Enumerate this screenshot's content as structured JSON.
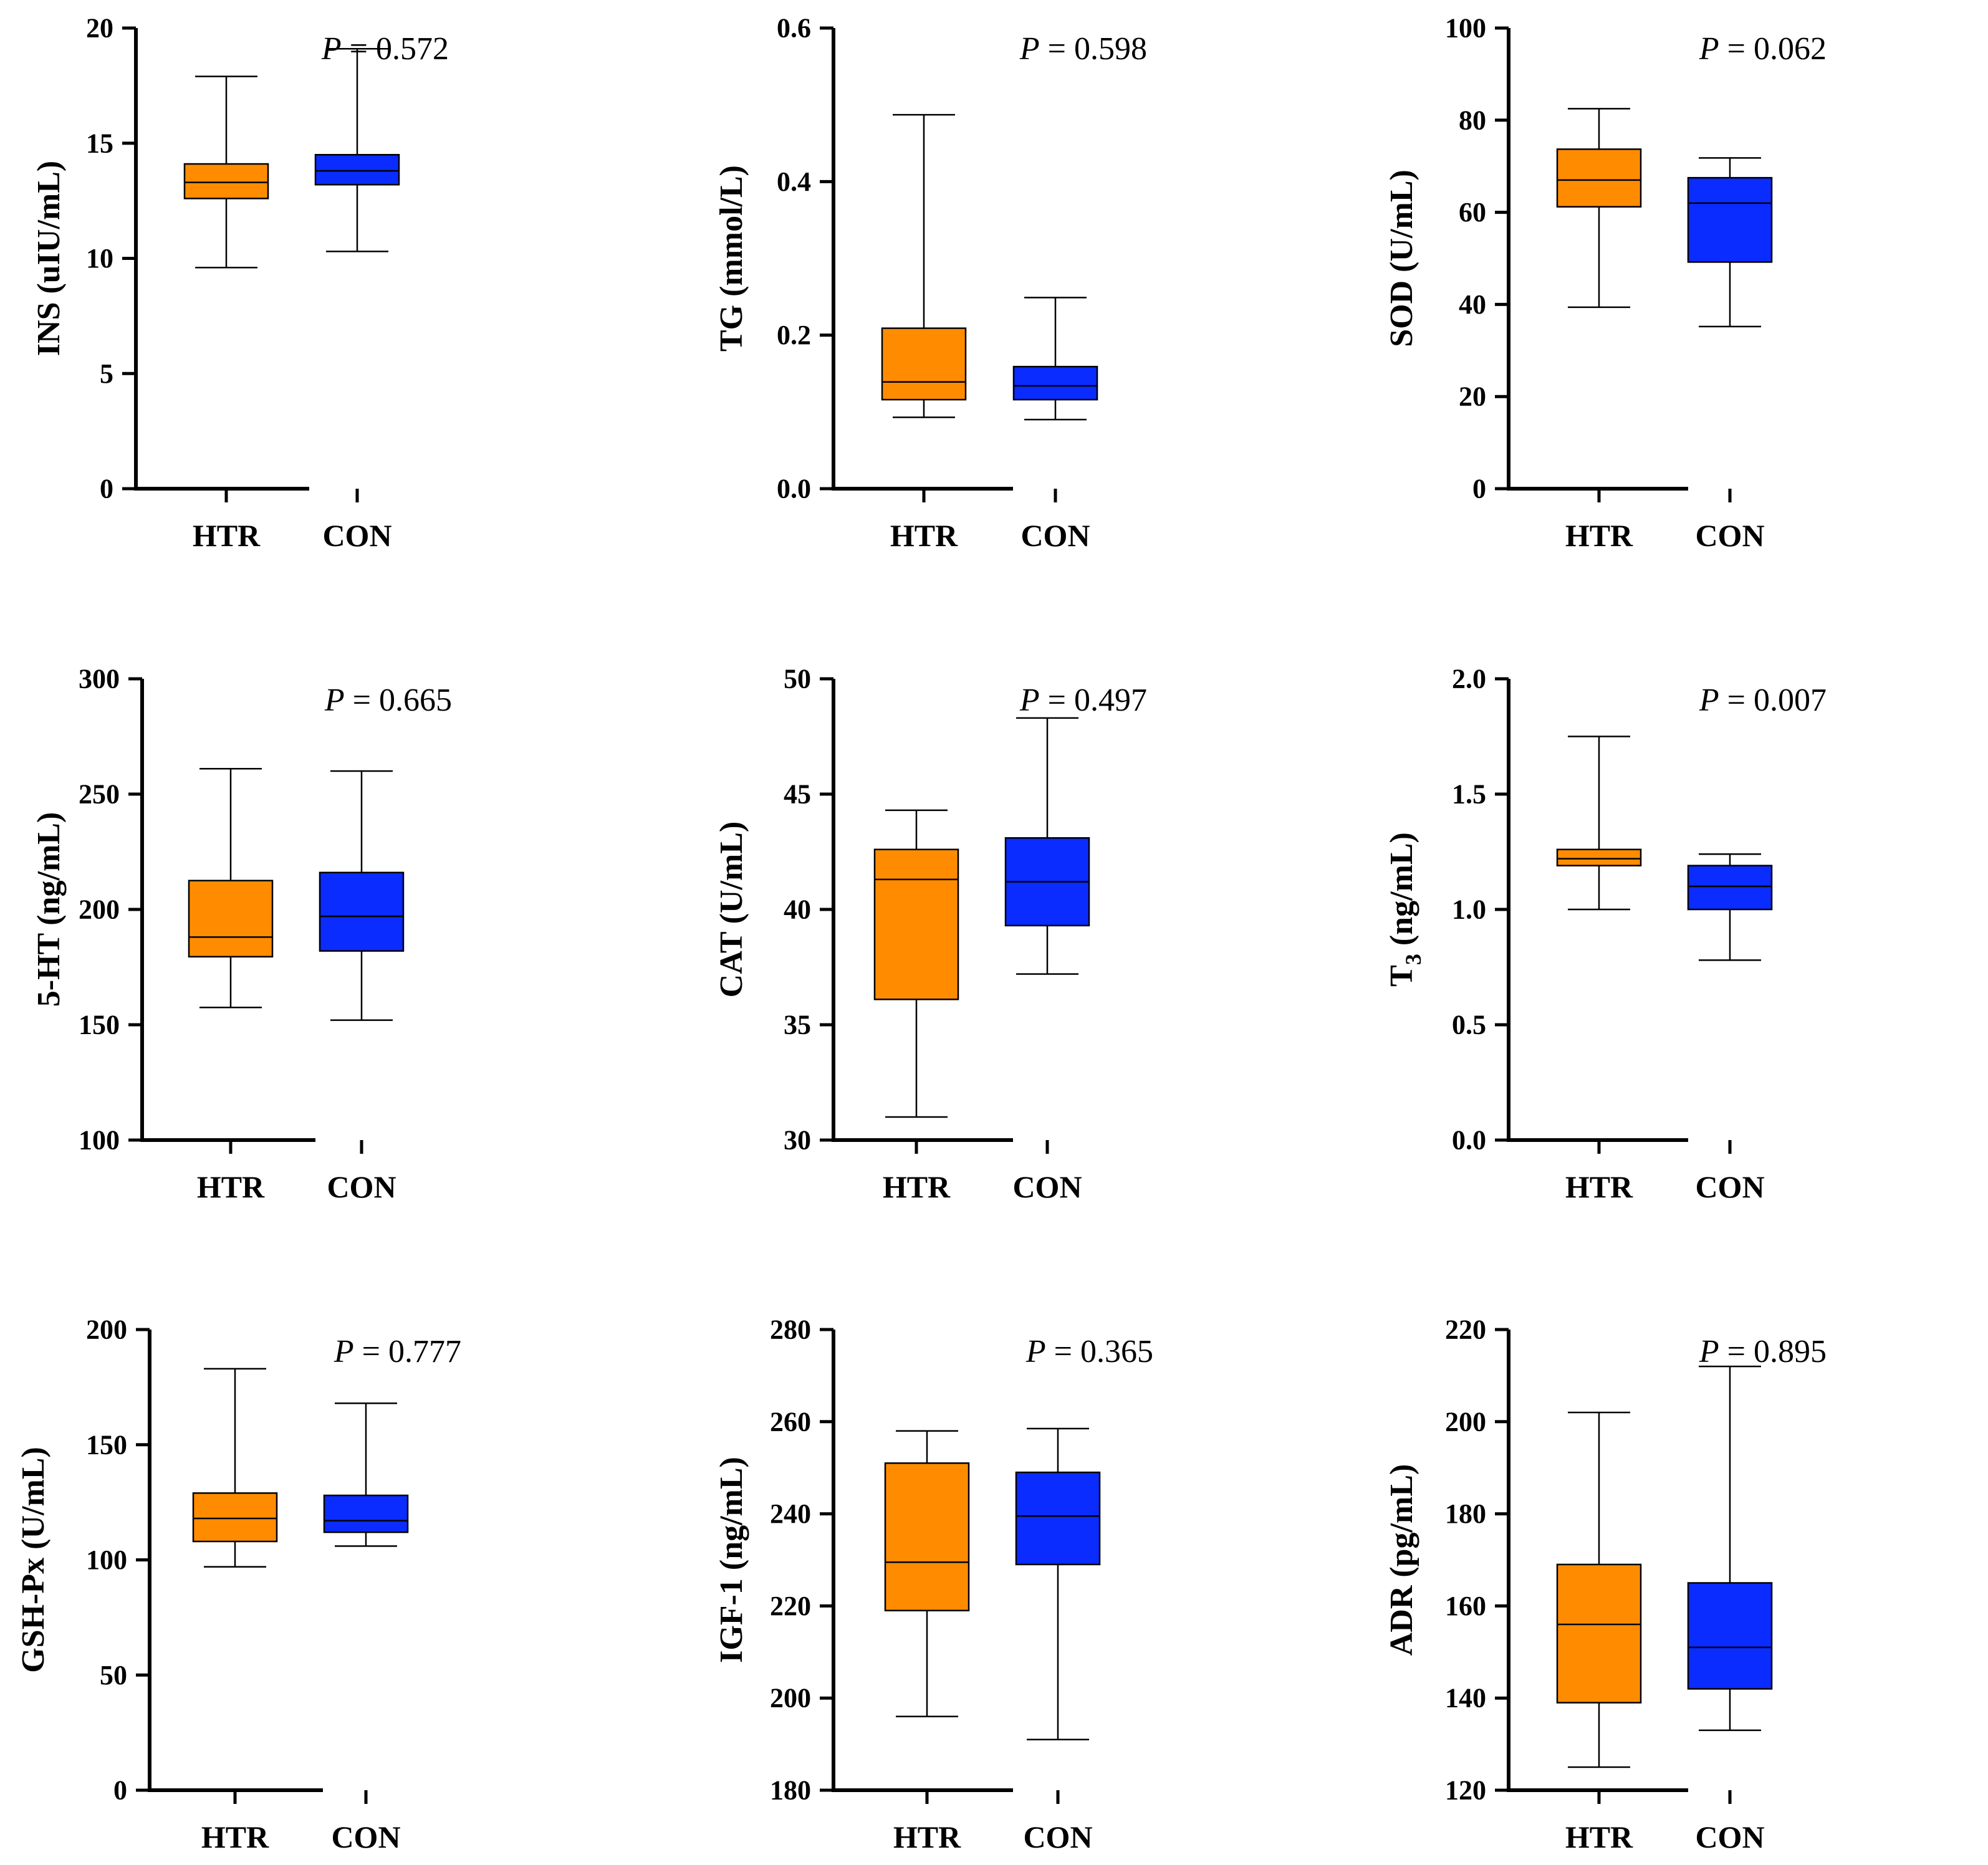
{
  "colors": {
    "HTR": "#ff8c00",
    "CON": "#0a2cff",
    "axis": "#000000"
  },
  "chart_data": [
    {
      "type": "box",
      "ylabel": "INS (uIU/mL)",
      "p_label": "P",
      "p_value": "= 0.572",
      "ylim": [
        0,
        20
      ],
      "yticks": [
        "0",
        "5",
        "10",
        "15",
        "20"
      ],
      "categories": [
        "HTR",
        "CON"
      ],
      "boxes": [
        {
          "name": "HTR",
          "min": 9.6,
          "q1": 12.6,
          "median": 13.3,
          "q3": 14.1,
          "max": 17.9
        },
        {
          "name": "CON",
          "min": 10.3,
          "q1": 13.2,
          "median": 13.8,
          "q3": 14.5,
          "max": 19.1
        }
      ]
    },
    {
      "type": "box",
      "ylabel": "TG (mmol/L)",
      "p_label": "P",
      "p_value": "= 0.598",
      "ylim": [
        0,
        0.6
      ],
      "yticks": [
        "0.0",
        "0.2",
        "0.4",
        "0.6"
      ],
      "categories": [
        "HTR",
        "CON"
      ],
      "boxes": [
        {
          "name": "HTR",
          "min": 0.093,
          "q1": 0.116,
          "median": 0.139,
          "q3": 0.209,
          "max": 0.487
        },
        {
          "name": "CON",
          "min": 0.09,
          "q1": 0.116,
          "median": 0.134,
          "q3": 0.159,
          "max": 0.249
        }
      ]
    },
    {
      "type": "box",
      "ylabel": "SOD (U/mL)",
      "p_label": "P",
      "p_value": "= 0.062",
      "ylim": [
        0,
        100
      ],
      "yticks": [
        "0",
        "20",
        "40",
        "60",
        "80",
        "100"
      ],
      "categories": [
        "HTR",
        "CON"
      ],
      "boxes": [
        {
          "name": "HTR",
          "min": 39.4,
          "q1": 61.2,
          "median": 67.0,
          "q3": 73.7,
          "max": 82.5
        },
        {
          "name": "CON",
          "min": 35.2,
          "q1": 49.2,
          "median": 62.0,
          "q3": 67.5,
          "max": 71.8
        }
      ]
    },
    {
      "type": "box",
      "ylabel": "5-HT (ng/mL)",
      "p_label": "P",
      "p_value": "= 0.665",
      "ylim": [
        100,
        300
      ],
      "yticks": [
        "100",
        "150",
        "200",
        "250",
        "300"
      ],
      "categories": [
        "HTR",
        "CON"
      ],
      "boxes": [
        {
          "name": "HTR",
          "min": 157.5,
          "q1": 179.5,
          "median": 188.0,
          "q3": 212.5,
          "max": 261.0
        },
        {
          "name": "CON",
          "min": 152.0,
          "q1": 182.0,
          "median": 197.0,
          "q3": 216.0,
          "max": 260.0
        }
      ]
    },
    {
      "type": "box",
      "ylabel": "CAT (U/mL)",
      "p_label": "P",
      "p_value": "= 0.497",
      "ylim": [
        30,
        50
      ],
      "yticks": [
        "30",
        "35",
        "40",
        "45",
        "50"
      ],
      "categories": [
        "HTR",
        "CON"
      ],
      "boxes": [
        {
          "name": "HTR",
          "min": 31.0,
          "q1": 36.1,
          "median": 41.3,
          "q3": 42.6,
          "max": 44.3
        },
        {
          "name": "CON",
          "min": 37.2,
          "q1": 39.3,
          "median": 41.2,
          "q3": 43.1,
          "max": 48.3
        }
      ]
    },
    {
      "type": "box",
      "ylabel": "T",
      "ylabel_sub": "3",
      "ylabel_suffix": " (ng/mL)",
      "p_label": "P",
      "p_value": "= 0.007",
      "ylim": [
        0,
        2
      ],
      "yticks": [
        "0.0",
        "0.5",
        "1.0",
        "1.5",
        "2.0"
      ],
      "categories": [
        "HTR",
        "CON"
      ],
      "boxes": [
        {
          "name": "HTR",
          "min": 1.0,
          "q1": 1.19,
          "median": 1.22,
          "q3": 1.26,
          "max": 1.75
        },
        {
          "name": "CON",
          "min": 0.78,
          "q1": 1.0,
          "median": 1.1,
          "q3": 1.19,
          "max": 1.24
        }
      ]
    },
    {
      "type": "box",
      "ylabel": "GSH-Px (U/mL)",
      "p_label": "P",
      "p_value": "= 0.777",
      "ylim": [
        0,
        200
      ],
      "yticks": [
        "0",
        "50",
        "100",
        "150",
        "200"
      ],
      "categories": [
        "HTR",
        "CON"
      ],
      "boxes": [
        {
          "name": "HTR",
          "min": 97,
          "q1": 108,
          "median": 118,
          "q3": 129,
          "max": 183
        },
        {
          "name": "CON",
          "min": 106,
          "q1": 112,
          "median": 117,
          "q3": 128,
          "max": 168
        }
      ]
    },
    {
      "type": "box",
      "ylabel": "IGF-1 (ng/mL)",
      "p_label": "P",
      "p_value": "= 0.365",
      "ylim": [
        180,
        280
      ],
      "yticks": [
        "180",
        "200",
        "220",
        "240",
        "260",
        "280"
      ],
      "categories": [
        "HTR",
        "CON"
      ],
      "boxes": [
        {
          "name": "HTR",
          "min": 196,
          "q1": 219,
          "median": 229.5,
          "q3": 251,
          "max": 258
        },
        {
          "name": "CON",
          "min": 191,
          "q1": 229,
          "median": 239.5,
          "q3": 249,
          "max": 258.5
        }
      ]
    },
    {
      "type": "box",
      "ylabel": "ADR (pg/mL)",
      "p_label": "P",
      "p_value": "= 0.895",
      "ylim": [
        120,
        220
      ],
      "yticks": [
        "120",
        "140",
        "160",
        "180",
        "200",
        "220"
      ],
      "categories": [
        "HTR",
        "CON"
      ],
      "boxes": [
        {
          "name": "HTR",
          "min": 125,
          "q1": 139,
          "median": 156,
          "q3": 169,
          "max": 202
        },
        {
          "name": "CON",
          "min": 133,
          "q1": 142,
          "median": 151,
          "q3": 165,
          "max": 212
        }
      ]
    }
  ]
}
